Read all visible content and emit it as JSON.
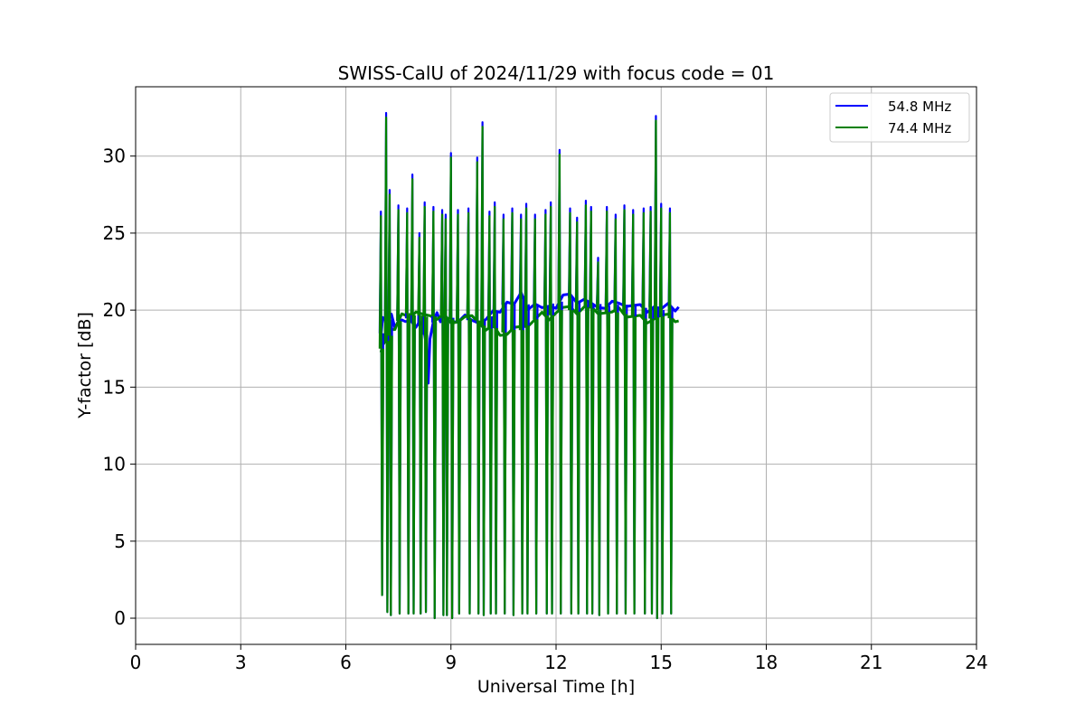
{
  "chart_data": {
    "type": "line",
    "title": "SWISS-CalU of 2024/11/29 with focus code = 01",
    "xlabel": "Universal Time [h]",
    "ylabel": "Y-factor [dB]",
    "xlim": [
      0,
      24
    ],
    "ylim": [
      -1.7,
      34.5
    ],
    "xticks": [
      0,
      3,
      6,
      9,
      12,
      15,
      18,
      21,
      24
    ],
    "xtick_labels": [
      "0",
      "3",
      "6",
      "9",
      "12",
      "15",
      "18",
      "21",
      "24"
    ],
    "yticks": [
      0,
      5,
      10,
      15,
      20,
      25,
      30
    ],
    "ytick_labels": [
      "0",
      "5",
      "10",
      "15",
      "20",
      "25",
      "30"
    ],
    "grid": true,
    "legend_position": "top-right",
    "series": [
      {
        "name": "54.8 MHz",
        "color": "#0000ff",
        "x": [
          7.0,
          7.05,
          7.15,
          7.3,
          7.4,
          7.5,
          7.6,
          7.7,
          7.85,
          8.0,
          8.1,
          8.2,
          8.25,
          8.3,
          8.35,
          8.4,
          8.5,
          8.6,
          8.7,
          8.8,
          8.9,
          9.0,
          9.2,
          9.4,
          9.6,
          9.8,
          10.0,
          10.2,
          10.4,
          10.6,
          10.8,
          11.0,
          11.2,
          11.4,
          11.6,
          11.8,
          12.0,
          12.2,
          12.4,
          12.6,
          12.8,
          13.0,
          13.2,
          13.4,
          13.6,
          13.8,
          14.0,
          14.2,
          14.4,
          14.6,
          14.8,
          15.0,
          15.2,
          15.4,
          15.5
        ],
        "y": [
          18.5,
          19.6,
          19.2,
          19.5,
          19.0,
          19.3,
          19.2,
          19.5,
          19.4,
          18.8,
          19.0,
          19.1,
          18.4,
          17.5,
          15.5,
          18.2,
          19.2,
          19.6,
          19.4,
          19.7,
          19.2,
          19.5,
          19.3,
          19.6,
          19.1,
          19.3,
          19.4,
          19.8,
          20.1,
          20.6,
          20.3,
          20.9,
          20.2,
          20.4,
          20.0,
          20.5,
          20.2,
          20.9,
          20.8,
          20.6,
          20.7,
          20.3,
          20.4,
          20.2,
          20.5,
          20.2,
          20.4,
          20.3,
          20.2,
          20.1,
          20.3,
          20.0,
          20.2,
          20.1,
          20.2
        ]
      },
      {
        "name": "74.4 MHz",
        "color": "#008000",
        "x": [
          7.0,
          7.05,
          7.15,
          7.3,
          7.4,
          7.5,
          7.6,
          7.7,
          7.85,
          8.0,
          8.2,
          8.4,
          8.6,
          8.8,
          9.0,
          9.2,
          9.4,
          9.6,
          9.8,
          10.0,
          10.2,
          10.4,
          10.6,
          10.8,
          11.0,
          11.2,
          11.4,
          11.6,
          11.8,
          12.0,
          12.2,
          12.4,
          12.6,
          12.8,
          13.0,
          13.2,
          13.4,
          13.6,
          13.8,
          14.0,
          14.2,
          14.4,
          14.6,
          14.8,
          15.0,
          15.2,
          15.4,
          15.5
        ],
        "y": [
          17.5,
          17.8,
          18.0,
          18.5,
          18.9,
          19.3,
          19.6,
          19.9,
          19.6,
          19.8,
          19.5,
          19.8,
          19.4,
          19.6,
          19.4,
          19.3,
          19.5,
          19.4,
          19.3,
          18.7,
          18.9,
          18.6,
          18.5,
          18.8,
          18.7,
          19.1,
          19.4,
          19.7,
          19.6,
          19.9,
          20.1,
          20.0,
          19.9,
          20.2,
          20.1,
          20.0,
          19.9,
          19.8,
          19.9,
          19.7,
          19.6,
          19.5,
          19.4,
          19.5,
          19.6,
          19.5,
          19.4,
          19.3
        ]
      }
    ],
    "calibration_spikes": [
      {
        "t": 7.0,
        "top": 26.4,
        "bottom": 1.5
      },
      {
        "t": 7.15,
        "top": 32.8,
        "bottom": 0.4
      },
      {
        "t": 7.25,
        "top": 27.8,
        "bottom": 0.2
      },
      {
        "t": 7.5,
        "top": 26.8,
        "bottom": 0.3
      },
      {
        "t": 7.75,
        "top": 26.6,
        "bottom": 0.3
      },
      {
        "t": 7.9,
        "top": 28.8,
        "bottom": 0.3
      },
      {
        "t": 8.1,
        "top": 25.0,
        "bottom": 0.3
      },
      {
        "t": 8.25,
        "top": 27.0,
        "bottom": 0.4
      },
      {
        "t": 8.5,
        "top": 26.7,
        "bottom": 0.0
      },
      {
        "t": 8.75,
        "top": 26.5,
        "bottom": 0.2
      },
      {
        "t": 8.85,
        "top": 26.2,
        "bottom": 0.2
      },
      {
        "t": 9.0,
        "top": 30.2,
        "bottom": 0.0
      },
      {
        "t": 9.2,
        "top": 26.5,
        "bottom": 0.3
      },
      {
        "t": 9.5,
        "top": 26.6,
        "bottom": 0.3
      },
      {
        "t": 9.75,
        "top": 29.9,
        "bottom": 0.3
      },
      {
        "t": 9.9,
        "top": 32.2,
        "bottom": 0.2
      },
      {
        "t": 10.1,
        "top": 26.4,
        "bottom": 0.3
      },
      {
        "t": 10.25,
        "top": 27.0,
        "bottom": 0.3
      },
      {
        "t": 10.5,
        "top": 26.2,
        "bottom": 0.3
      },
      {
        "t": 10.75,
        "top": 26.6,
        "bottom": 0.2
      },
      {
        "t": 11.0,
        "top": 26.2,
        "bottom": 0.3
      },
      {
        "t": 11.15,
        "top": 26.9,
        "bottom": 0.3
      },
      {
        "t": 11.4,
        "top": 26.2,
        "bottom": 0.3
      },
      {
        "t": 11.7,
        "top": 26.5,
        "bottom": 0.3
      },
      {
        "t": 11.85,
        "top": 27.0,
        "bottom": 0.3
      },
      {
        "t": 12.1,
        "top": 30.4,
        "bottom": 0.3
      },
      {
        "t": 12.4,
        "top": 26.6,
        "bottom": 0.3
      },
      {
        "t": 12.6,
        "top": 26.0,
        "bottom": 0.3
      },
      {
        "t": 12.85,
        "top": 27.1,
        "bottom": 0.3
      },
      {
        "t": 13.0,
        "top": 26.7,
        "bottom": 0.3
      },
      {
        "t": 13.2,
        "top": 23.4,
        "bottom": 0.2
      },
      {
        "t": 13.45,
        "top": 26.7,
        "bottom": 0.3
      },
      {
        "t": 13.7,
        "top": 26.2,
        "bottom": 0.3
      },
      {
        "t": 13.95,
        "top": 26.8,
        "bottom": 0.3
      },
      {
        "t": 14.2,
        "top": 26.5,
        "bottom": 0.3
      },
      {
        "t": 14.5,
        "top": 26.6,
        "bottom": 0.3
      },
      {
        "t": 14.7,
        "top": 26.7,
        "bottom": 0.3
      },
      {
        "t": 14.85,
        "top": 32.6,
        "bottom": 0.0
      },
      {
        "t": 15.0,
        "top": 26.9,
        "bottom": 0.3
      },
      {
        "t": 15.25,
        "top": 26.6,
        "bottom": 0.3
      }
    ]
  }
}
